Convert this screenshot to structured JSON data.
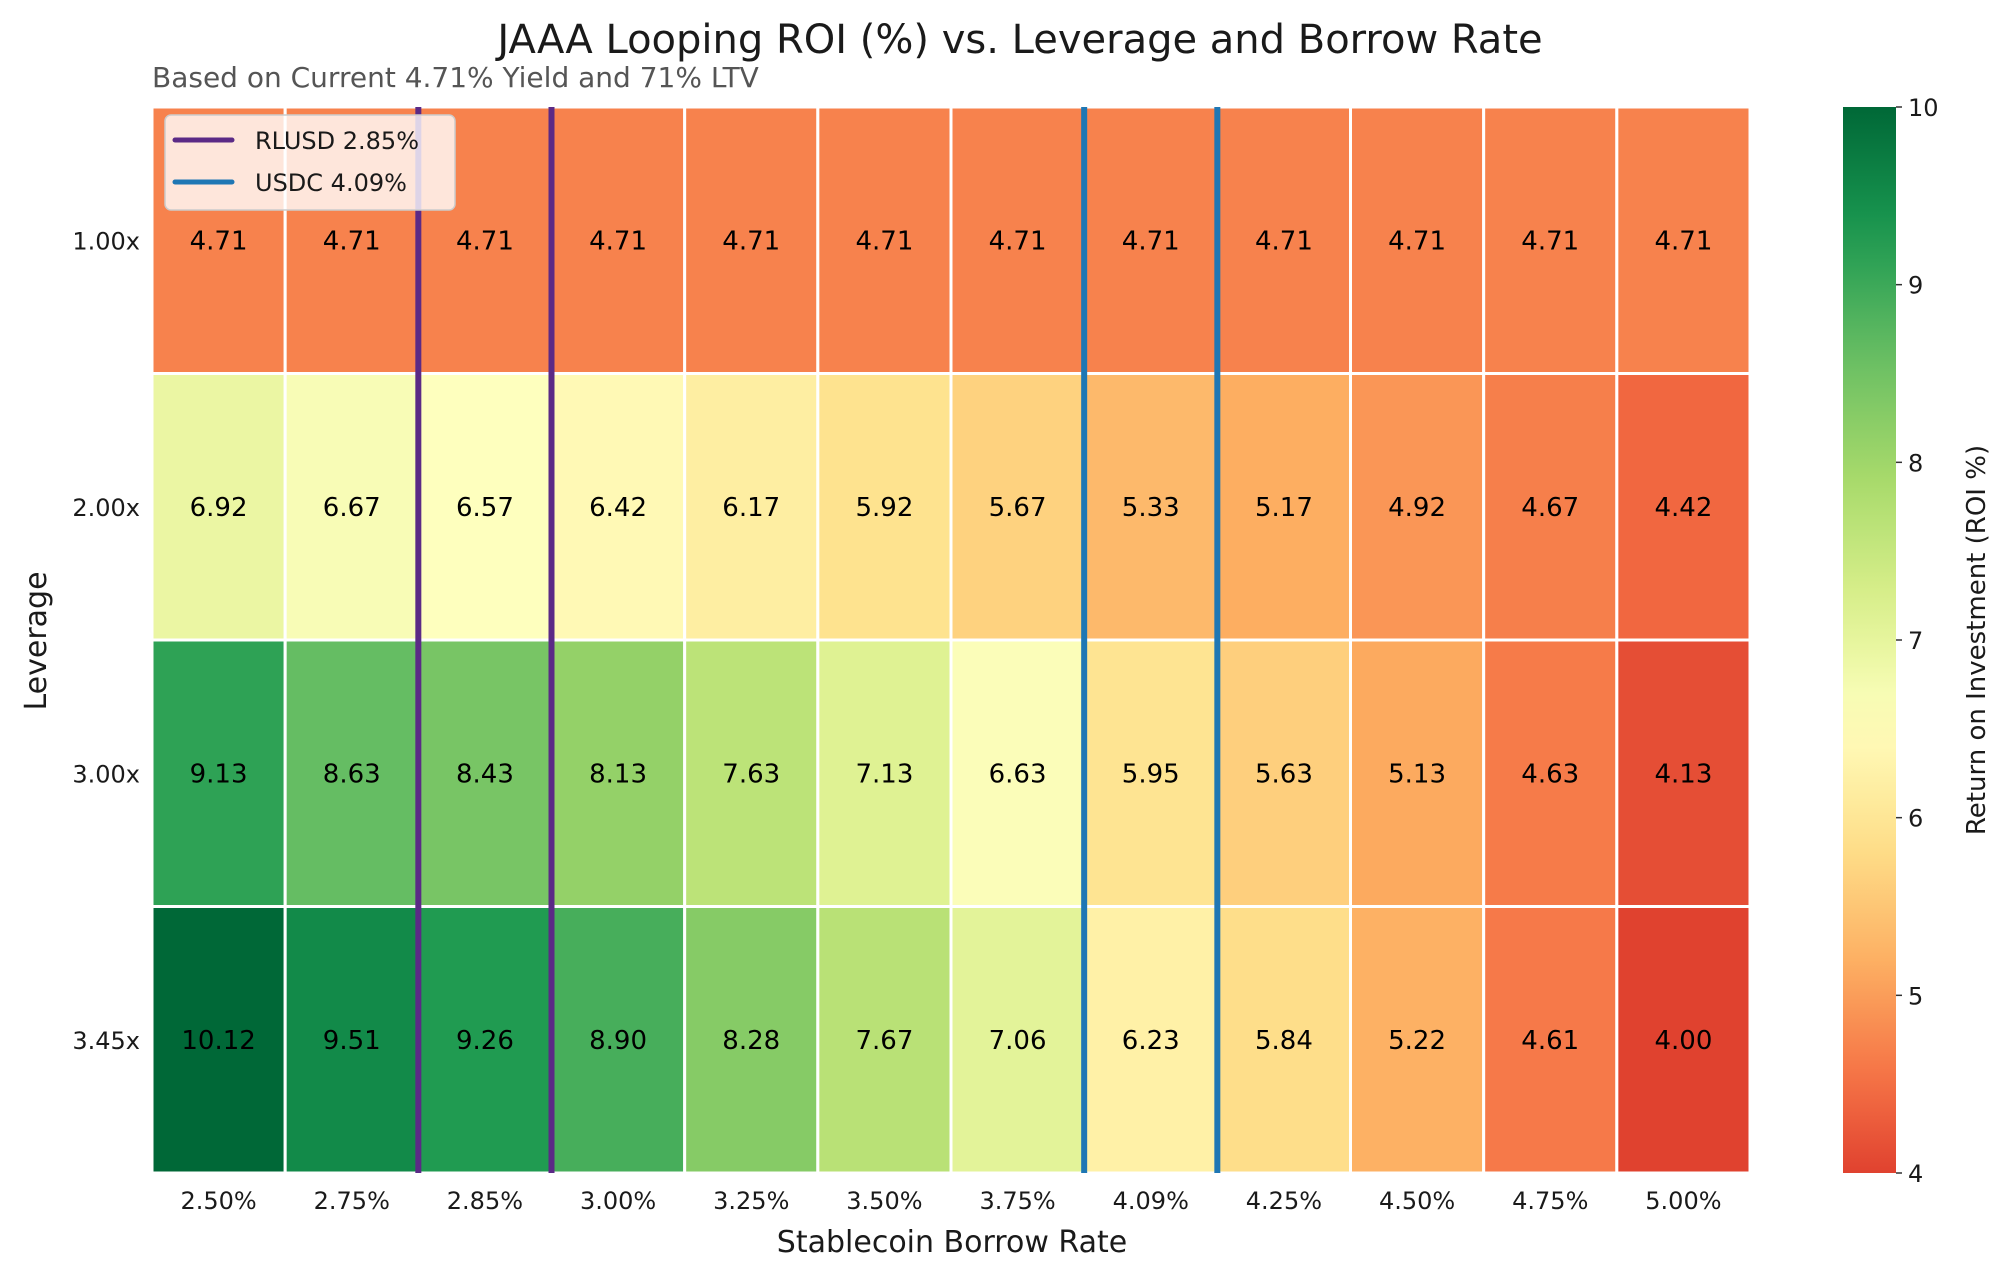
{
  "chart_data": {
    "type": "heatmap",
    "title": "JAAA Looping ROI (%) vs. Leverage and Borrow Rate",
    "subtitle": "Based on Current 4.71% Yield and 71% LTV",
    "xlabel": "Stablecoin Borrow Rate",
    "ylabel": "Leverage",
    "x_categories": [
      "2.50%",
      "2.75%",
      "2.85%",
      "3.00%",
      "3.25%",
      "3.50%",
      "3.75%",
      "4.09%",
      "4.25%",
      "4.50%",
      "4.75%",
      "5.00%"
    ],
    "y_categories": [
      "1.00x",
      "2.00x",
      "3.00x",
      "3.45x"
    ],
    "values": [
      [
        4.71,
        4.71,
        4.71,
        4.71,
        4.71,
        4.71,
        4.71,
        4.71,
        4.71,
        4.71,
        4.71,
        4.71
      ],
      [
        6.92,
        6.67,
        6.57,
        6.42,
        6.17,
        5.92,
        5.67,
        5.33,
        5.17,
        4.92,
        4.67,
        4.42
      ],
      [
        9.13,
        8.63,
        8.43,
        8.13,
        7.63,
        7.13,
        6.63,
        5.95,
        5.63,
        5.13,
        4.63,
        4.13
      ],
      [
        10.12,
        9.51,
        9.26,
        8.9,
        8.28,
        7.67,
        7.06,
        6.23,
        5.84,
        5.22,
        4.61,
        4.0
      ]
    ],
    "value_format_decimals": 2,
    "colormap": "RdYlGn",
    "colorbar": {
      "label": "Return on Investment (ROI %)",
      "range": [
        4,
        10
      ],
      "ticks": [
        "4",
        "5",
        "6",
        "7",
        "8",
        "9",
        "10"
      ]
    },
    "reference_lines": [
      {
        "name": "RLUSD 2.85%",
        "color": "#5b2a86",
        "column_index": 2,
        "edges": [
          "left",
          "right"
        ]
      },
      {
        "name": "USDC 4.09%",
        "color": "#1f77b4",
        "column_index": 7,
        "edges": [
          "left",
          "right"
        ]
      }
    ],
    "legend": {
      "position": "top-left",
      "entries": [
        {
          "label": "RLUSD 2.85%",
          "color": "#5b2a86"
        },
        {
          "label": "USDC 4.09%",
          "color": "#1f77b4"
        }
      ]
    },
    "grid": false
  }
}
